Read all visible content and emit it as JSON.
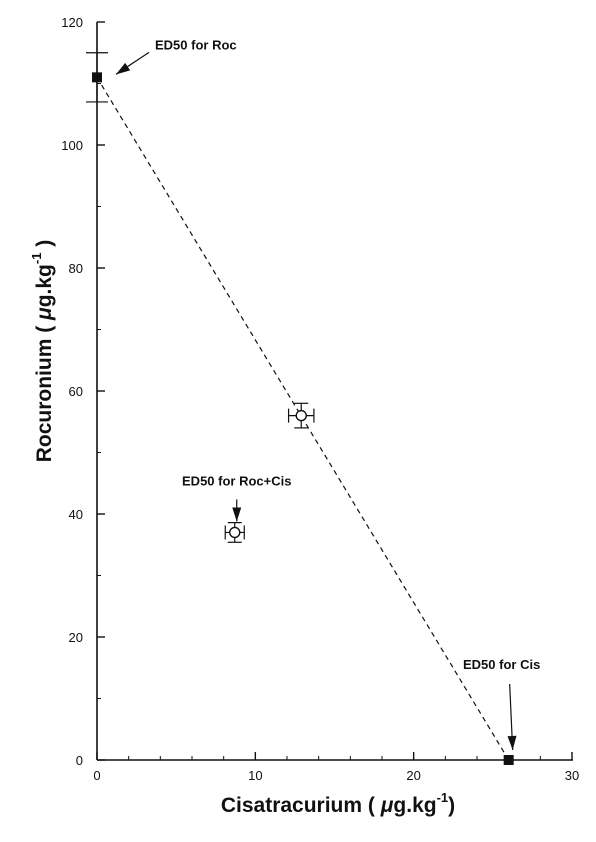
{
  "chart_data": {
    "type": "scatter",
    "x_axis": {
      "title_main": "Cisatracurium ( ",
      "title_mu": "μ",
      "title_unit": "g.kg",
      "title_sup": "-1",
      "title_end": ")",
      "range": [
        0,
        30
      ],
      "ticks": [
        "0",
        "10",
        "20",
        "30"
      ],
      "tick_values": [
        0,
        10,
        20,
        30
      ]
    },
    "y_axis": {
      "title_main": "Rocuronium ( ",
      "title_mu": "μ",
      "title_unit": "g.kg",
      "title_sup": "-1",
      "title_end": " )",
      "range": [
        0,
        120
      ],
      "ticks": [
        "0",
        "20",
        "40",
        "60",
        "80",
        "100",
        "120"
      ],
      "tick_values": [
        0,
        20,
        40,
        60,
        80,
        100,
        120
      ]
    },
    "isobole": {
      "from": [
        0,
        111
      ],
      "to": [
        26,
        0
      ],
      "style": "dashed"
    },
    "series": [
      {
        "marker": "filled-square",
        "points": [
          {
            "x": 0,
            "y": 111,
            "y_err": 4
          },
          {
            "x": 26,
            "y": 0
          }
        ]
      },
      {
        "marker": "open-circle",
        "points": [
          {
            "x": 12.9,
            "y": 56,
            "x_err": 0.8,
            "y_err": 2
          },
          {
            "x": 8.7,
            "y": 37,
            "x_err": 0.6,
            "y_err": 1.6
          }
        ]
      }
    ],
    "annotations": [
      {
        "text": "ED50 for Roc"
      },
      {
        "text": "ED50 for Roc+Cis"
      },
      {
        "text": "ED50 for Cis"
      }
    ],
    "grid": false,
    "legend": "none"
  }
}
